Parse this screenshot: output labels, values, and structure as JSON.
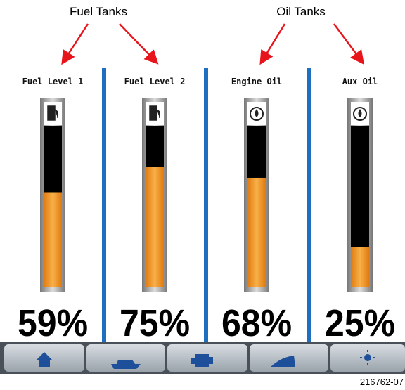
{
  "annotations": [
    {
      "text": "Fuel Tanks"
    },
    {
      "text": "Oil Tanks"
    }
  ],
  "gauges": [
    {
      "label": "Fuel Level 1",
      "value": 59,
      "value_label": "59%"
    },
    {
      "label": "Fuel Level 2",
      "value": 75,
      "value_label": "75%"
    },
    {
      "label": "Engine Oil",
      "value": 68,
      "value_label": "68%"
    },
    {
      "label": "Aux Oil",
      "value": 25,
      "value_label": "25%"
    }
  ],
  "figure_id": "216762-07"
}
